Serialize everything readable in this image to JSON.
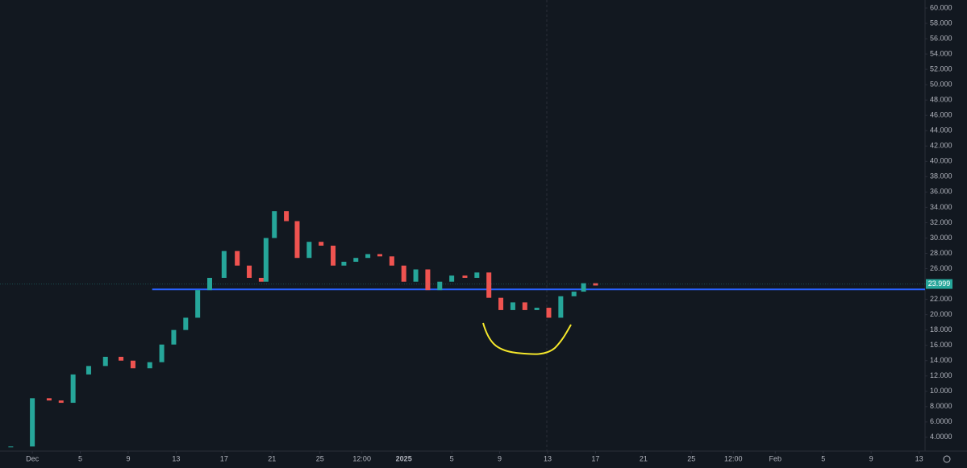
{
  "chart_data": {
    "type": "candlestick",
    "x": [
      -1.8,
      0,
      1.4,
      2.4,
      3.4,
      4.7,
      6.1,
      7.4,
      8.4,
      9.8,
      10.8,
      11.8,
      12.8,
      13.8,
      14.8,
      16.0,
      17.1,
      18.1,
      19.1,
      19.5,
      20.2,
      21.2,
      22.1,
      23.1,
      24.1,
      25.1,
      26.0,
      27.0,
      28.0,
      29.0,
      30.0,
      31.0,
      32.0,
      33.0,
      34.0,
      35.0,
      36.1,
      37.1,
      38.1,
      39.1,
      40.1,
      41.1,
      42.1,
      43.1,
      44.1,
      45.2,
      46.0,
      47.0
    ],
    "values": [
      2.8,
      9.1,
      8.8,
      8.5,
      12.2,
      13.3,
      14.5,
      14.0,
      13.0,
      13.8,
      16.1,
      18.0,
      19.6,
      23.2,
      24.8,
      28.3,
      26.4,
      24.8,
      24.3,
      30.0,
      33.5,
      32.2,
      27.4,
      29.5,
      29.0,
      26.4,
      26.9,
      27.4,
      27.9,
      27.6,
      26.4,
      24.3,
      25.9,
      23.2,
      24.3,
      25.1,
      24.8,
      25.5,
      22.2,
      20.6,
      21.6,
      20.6,
      20.9,
      19.6,
      22.4,
      23.0,
      24.1,
      23.8
    ],
    "up_color": "#26a69a",
    "down_color": "#ef5350",
    "xlim": [
      -2.7,
      74.5
    ],
    "ylim": [
      2.2,
      61.05
    ],
    "xticks": [
      {
        "value": 0,
        "label": "Dec"
      },
      {
        "value": 4,
        "label": "5"
      },
      {
        "value": 8,
        "label": "9"
      },
      {
        "value": 12,
        "label": "13"
      },
      {
        "value": 16,
        "label": "17"
      },
      {
        "value": 20,
        "label": "21"
      },
      {
        "value": 24,
        "label": "25"
      },
      {
        "value": 27.5,
        "label": "12:00"
      },
      {
        "value": 31,
        "label": "2025"
      },
      {
        "value": 35,
        "label": "5"
      },
      {
        "value": 39,
        "label": "9"
      },
      {
        "value": 43,
        "label": "13"
      },
      {
        "value": 47,
        "label": "17"
      },
      {
        "value": 51,
        "label": "21"
      },
      {
        "value": 55,
        "label": "25"
      },
      {
        "value": 58.5,
        "label": "12:00"
      },
      {
        "value": 62,
        "label": "Feb"
      },
      {
        "value": 66,
        "label": "5"
      },
      {
        "value": 70,
        "label": "9"
      },
      {
        "value": 74,
        "label": "13"
      }
    ],
    "yticks": [
      {
        "value": 60,
        "label": "60.000"
      },
      {
        "value": 58,
        "label": "58.000"
      },
      {
        "value": 56,
        "label": "56.000"
      },
      {
        "value": 54,
        "label": "54.000"
      },
      {
        "value": 52,
        "label": "52.000"
      },
      {
        "value": 50,
        "label": "50.000"
      },
      {
        "value": 48,
        "label": "48.000"
      },
      {
        "value": 46,
        "label": "46.000"
      },
      {
        "value": 44,
        "label": "44.000"
      },
      {
        "value": 42,
        "label": "42.000"
      },
      {
        "value": 40,
        "label": "40.000"
      },
      {
        "value": 38,
        "label": "38.000"
      },
      {
        "value": 36,
        "label": "36.000"
      },
      {
        "value": 34,
        "label": "34.000"
      },
      {
        "value": 32,
        "label": "32.000"
      },
      {
        "value": 30,
        "label": "30.000"
      },
      {
        "value": 28,
        "label": "28.000"
      },
      {
        "value": 26,
        "label": "26.000"
      },
      {
        "value": 24,
        "label": "24.000"
      },
      {
        "value": 22,
        "label": "22.000"
      },
      {
        "value": 20,
        "label": "20.000"
      },
      {
        "value": 18,
        "label": "18.000"
      },
      {
        "value": 16,
        "label": "16.000"
      },
      {
        "value": 14,
        "label": "14.000"
      },
      {
        "value": 12,
        "label": "12.000"
      },
      {
        "value": 10,
        "label": "10.000"
      },
      {
        "value": 8,
        "label": "8.0000"
      },
      {
        "value": 6,
        "label": "6.0000"
      },
      {
        "value": 4,
        "label": "4.0000"
      }
    ],
    "hline": {
      "value": 23.3,
      "start_x": 10,
      "color": "#2962ff"
    },
    "last_price": 23.999
  }
}
